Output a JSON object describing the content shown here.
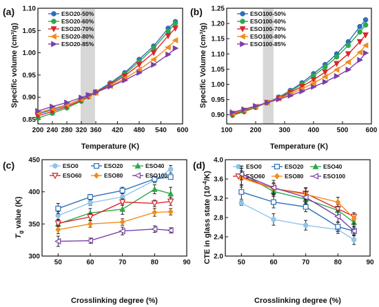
{
  "chart_data": [
    {
      "panel": "(a)",
      "type": "line",
      "xlabel": "Temperature (K)",
      "ylabel": "Specific volume (cm³/g)",
      "xlim": [
        200,
        600
      ],
      "ylim": [
        0.84,
        1.1
      ],
      "xticks": [
        "200",
        "240",
        "280",
        "320",
        "360",
        "420",
        "480",
        "540",
        "600"
      ],
      "yticks": [
        "0.85",
        "0.90",
        "0.95",
        "1.00",
        "1.05",
        "1.10"
      ],
      "shaded_band": [
        318,
        358
      ],
      "legend_position": "top-left",
      "series": [
        {
          "name": "ESO20-50%",
          "color": "#2f6fb5",
          "marker": "circle",
          "x": [
            200,
            240,
            280,
            320,
            340,
            360,
            400,
            440,
            480,
            520,
            560,
            580
          ],
          "y": [
            0.862,
            0.872,
            0.882,
            0.896,
            0.904,
            0.912,
            0.932,
            0.955,
            0.985,
            1.015,
            1.055,
            1.07
          ]
        },
        {
          "name": "ESO20-60%",
          "color": "#2fa84a",
          "marker": "circle",
          "x": [
            200,
            240,
            280,
            320,
            340,
            360,
            400,
            440,
            480,
            520,
            560,
            580
          ],
          "y": [
            0.853,
            0.864,
            0.876,
            0.891,
            0.901,
            0.91,
            0.93,
            0.952,
            0.98,
            1.01,
            1.048,
            1.066
          ]
        },
        {
          "name": "ESO20-70%",
          "color": "#d9262c",
          "marker": "triangle-down",
          "x": [
            200,
            240,
            280,
            320,
            340,
            360,
            400,
            440,
            480,
            520,
            560,
            580
          ],
          "y": [
            0.858,
            0.868,
            0.879,
            0.893,
            0.902,
            0.91,
            0.928,
            0.948,
            0.973,
            1.0,
            1.038,
            1.055
          ]
        },
        {
          "name": "ESO20-80%",
          "color": "#f28b1c",
          "marker": "triangle-left",
          "x": [
            200,
            240,
            280,
            320,
            340,
            360,
            400,
            440,
            480,
            520,
            560,
            580
          ],
          "y": [
            0.865,
            0.874,
            0.883,
            0.895,
            0.903,
            0.91,
            0.925,
            0.942,
            0.962,
            0.985,
            1.012,
            1.028
          ]
        },
        {
          "name": "ESO20-85%",
          "color": "#7a3fa8",
          "marker": "triangle-right",
          "x": [
            200,
            240,
            280,
            320,
            340,
            360,
            400,
            440,
            480,
            520,
            560,
            580
          ],
          "y": [
            0.869,
            0.879,
            0.888,
            0.899,
            0.905,
            0.911,
            0.924,
            0.938,
            0.955,
            0.973,
            0.996,
            1.01
          ]
        }
      ]
    },
    {
      "panel": "(b)",
      "type": "line",
      "xlabel": "Temperature (K)",
      "ylabel": "Specific Volume (cm³/g)",
      "xlim": [
        100,
        600
      ],
      "ylim": [
        0.87,
        1.25
      ],
      "xticks": [
        "100",
        "200",
        "300",
        "400",
        "500",
        "600"
      ],
      "yticks": [
        "0.90",
        "0.95",
        "1.00",
        "1.05",
        "1.10",
        "1.15",
        "1.20",
        "1.25"
      ],
      "shaded_band": [
        225,
        262
      ],
      "legend_position": "top-left",
      "series": [
        {
          "name": "ESO100-50%",
          "color": "#2f6fb5",
          "marker": "circle",
          "x": [
            120,
            160,
            200,
            240,
            280,
            320,
            360,
            400,
            440,
            480,
            520,
            560,
            580
          ],
          "y": [
            0.9,
            0.912,
            0.925,
            0.94,
            0.958,
            0.98,
            1.005,
            1.035,
            1.065,
            1.1,
            1.14,
            1.19,
            1.212
          ]
        },
        {
          "name": "ESO100-60%",
          "color": "#2fa84a",
          "marker": "circle",
          "x": [
            120,
            160,
            200,
            240,
            280,
            320,
            360,
            400,
            440,
            480,
            520,
            560,
            580
          ],
          "y": [
            0.898,
            0.91,
            0.924,
            0.94,
            0.957,
            0.977,
            1.0,
            1.028,
            1.057,
            1.09,
            1.128,
            1.172,
            1.195
          ]
        },
        {
          "name": "ESO100-70%",
          "color": "#d9262c",
          "marker": "triangle-down",
          "x": [
            120,
            160,
            200,
            240,
            280,
            320,
            360,
            400,
            440,
            480,
            520,
            560,
            580
          ],
          "y": [
            0.902,
            0.913,
            0.926,
            0.94,
            0.955,
            0.973,
            0.993,
            1.015,
            1.04,
            1.068,
            1.1,
            1.14,
            1.162
          ]
        },
        {
          "name": "ESO100-80%",
          "color": "#f28b1c",
          "marker": "triangle-left",
          "x": [
            120,
            160,
            200,
            240,
            280,
            320,
            360,
            400,
            440,
            480,
            520,
            560,
            580
          ],
          "y": [
            0.905,
            0.915,
            0.927,
            0.94,
            0.953,
            0.968,
            0.985,
            1.004,
            1.025,
            1.048,
            1.073,
            1.105,
            1.128
          ]
        },
        {
          "name": "ESO100-85%",
          "color": "#7a3fa8",
          "marker": "triangle-right",
          "x": [
            120,
            160,
            200,
            240,
            280,
            320,
            360,
            400,
            440,
            480,
            520,
            560,
            580
          ],
          "y": [
            0.908,
            0.918,
            0.929,
            0.94,
            0.951,
            0.963,
            0.977,
            0.992,
            1.008,
            1.027,
            1.048,
            1.08,
            1.103
          ]
        }
      ]
    },
    {
      "panel": "(c)",
      "type": "line",
      "xlabel": "Crosslinking degree (%)",
      "ylabel_main": "T",
      "ylabel_sub": "g",
      "ylabel_rest": " value (K)",
      "xlim": [
        45,
        90
      ],
      "ylim": [
        300,
        450
      ],
      "xticks": [
        "50",
        "60",
        "70",
        "80",
        "90"
      ],
      "yticks": [
        "300",
        "350",
        "400",
        "450"
      ],
      "legend_position": "top",
      "series": [
        {
          "name": "ESO0",
          "color": "#8ec5ea",
          "marker": "circle",
          "x": [
            50,
            60,
            70,
            80,
            85
          ],
          "y": [
            363,
            383,
            392,
            418,
            435
          ],
          "err": [
            6,
            4,
            5,
            4,
            6
          ]
        },
        {
          "name": "ESO20",
          "color": "#2f6fb5",
          "marker": "square-open",
          "x": [
            50,
            60,
            70,
            80,
            85
          ],
          "y": [
            374,
            392,
            402,
            420,
            423
          ],
          "err": [
            8,
            4,
            5,
            4,
            3
          ]
        },
        {
          "name": "ESO40",
          "color": "#2fa84a",
          "marker": "triangle-up",
          "x": [
            50,
            60,
            70,
            80,
            85
          ],
          "y": [
            350,
            367,
            373,
            404,
            397
          ],
          "err": [
            7,
            7,
            8,
            7,
            10
          ]
        },
        {
          "name": "ESO60",
          "color": "#d9262c",
          "marker": "triangle-down-open",
          "x": [
            50,
            60,
            70,
            80,
            85
          ],
          "y": [
            351,
            361,
            384,
            382,
            385
          ],
          "err": [
            5,
            5,
            5,
            5,
            6
          ]
        },
        {
          "name": "ESO80",
          "color": "#f28b1c",
          "marker": "diamond",
          "x": [
            50,
            60,
            70,
            80,
            85
          ],
          "y": [
            341,
            350,
            353,
            368,
            369
          ],
          "err": [
            6,
            5,
            5,
            6,
            5
          ]
        },
        {
          "name": "ESO100",
          "color": "#7a3fa8",
          "marker": "triangle-left-open",
          "x": [
            50,
            60,
            70,
            80,
            85
          ],
          "y": [
            323,
            324,
            339,
            342,
            340
          ],
          "err": [
            8,
            4,
            6,
            5,
            4
          ]
        }
      ]
    },
    {
      "panel": "(d)",
      "type": "line",
      "xlabel": "Crosslinking degree (%)",
      "ylabel_main": "CTE in glass state (10",
      "ylabel_sup": "-4",
      "ylabel_rest": "/K)",
      "xlim": [
        45,
        90
      ],
      "ylim": [
        2.0,
        4.0
      ],
      "xticks": [
        "50",
        "60",
        "70",
        "80",
        "90"
      ],
      "yticks": [
        "2.0",
        "2.4",
        "2.8",
        "3.2",
        "3.6",
        "4.0"
      ],
      "legend_position": "top",
      "series": [
        {
          "name": "ESO0",
          "color": "#8ec5ea",
          "marker": "circle",
          "x": [
            50,
            60,
            70,
            80,
            85
          ],
          "y": [
            3.1,
            2.76,
            2.64,
            2.55,
            2.34
          ],
          "err": [
            0.05,
            0.12,
            0.1,
            0.08,
            0.1
          ]
        },
        {
          "name": "ESO20",
          "color": "#2f6fb5",
          "marker": "square-open",
          "x": [
            50,
            60,
            70,
            80,
            85
          ],
          "y": [
            3.33,
            3.12,
            3.02,
            2.61,
            2.52
          ],
          "err": [
            0.15,
            0.12,
            0.1,
            0.1,
            0.08
          ]
        },
        {
          "name": "ESO40",
          "color": "#2fa84a",
          "marker": "triangle-up",
          "x": [
            50,
            60,
            70,
            80,
            85
          ],
          "y": [
            3.72,
            3.34,
            3.18,
            2.95,
            2.7
          ],
          "err": [
            0.1,
            0.1,
            0.1,
            0.12,
            0.1
          ]
        },
        {
          "name": "ESO60",
          "color": "#d9262c",
          "marker": "triangle-down-open",
          "x": [
            50,
            60,
            70,
            80,
            85
          ],
          "y": [
            3.65,
            3.4,
            3.3,
            2.98,
            2.82
          ],
          "err": [
            0.22,
            0.12,
            0.12,
            0.15,
            0.08
          ]
        },
        {
          "name": "ESO80",
          "color": "#f28b1c",
          "marker": "diamond",
          "x": [
            50,
            60,
            70,
            80,
            85
          ],
          "y": [
            3.62,
            3.4,
            3.28,
            3.12,
            2.78
          ],
          "err": [
            0.15,
            0.1,
            0.12,
            0.1,
            0.12
          ]
        },
        {
          "name": "ESO100",
          "color": "#7a3fa8",
          "marker": "triangle-left-open",
          "x": [
            50,
            60,
            70,
            80,
            85
          ],
          "y": [
            3.7,
            3.42,
            3.22,
            2.82,
            2.52
          ],
          "err": [
            0.12,
            0.15,
            0.12,
            0.12,
            0.1
          ]
        }
      ]
    }
  ]
}
